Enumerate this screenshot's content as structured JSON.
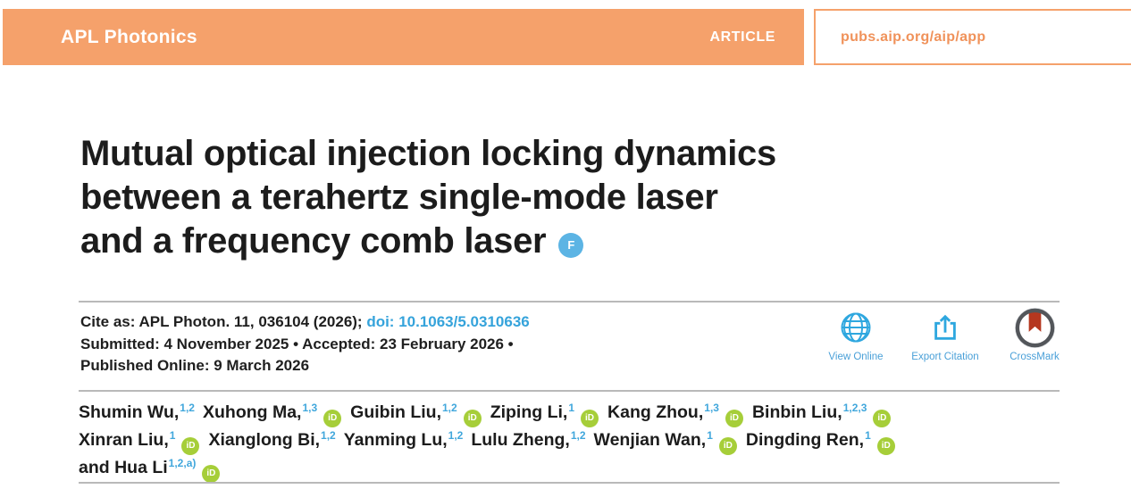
{
  "header": {
    "journal": "APL Photonics",
    "article_label": "ARTICLE",
    "site_url": "pubs.aip.org/aip/app"
  },
  "title": {
    "lines": [
      "Mutual optical injection locking dynamics",
      "between a terahertz single-mode laser",
      "and a frequency comb laser"
    ],
    "badge_glyph": "F"
  },
  "citation": {
    "cite_prefix": "Cite as: APL Photon. ",
    "volume": "11",
    "cite_rest": ", 036104 (2026); ",
    "doi": "doi: 10.1063/5.0310636",
    "submitted_line": "Submitted: 4 November 2025 • Accepted: 23 February 2026 •",
    "published_line": "Published Online: 9 March 2026"
  },
  "actions": [
    {
      "label": "View Online",
      "icon": "globe-icon"
    },
    {
      "label": "Export Citation",
      "icon": "export-icon"
    },
    {
      "label": "CrossMark",
      "icon": "crossmark-icon"
    }
  ],
  "authors": {
    "lines": [
      [
        {
          "name": "Shumin Wu,",
          "sup": "1,2",
          "orcid": false
        },
        {
          "name": "Xuhong Ma,",
          "sup": "1,3",
          "orcid": true
        },
        {
          "name": "Guibin Liu,",
          "sup": "1,2",
          "orcid": true
        },
        {
          "name": "Ziping Li,",
          "sup": "1",
          "orcid": true
        },
        {
          "name": "Kang Zhou,",
          "sup": "1,3",
          "orcid": true
        },
        {
          "name": "Binbin Liu,",
          "sup": "1,2,3",
          "orcid": true
        }
      ],
      [
        {
          "name": "Xinran Liu,",
          "sup": "1",
          "orcid": true
        },
        {
          "name": "Xianglong Bi,",
          "sup": "1,2",
          "orcid": false
        },
        {
          "name": "Yanming Lu,",
          "sup": "1,2",
          "orcid": false
        },
        {
          "name": "Lulu Zheng,",
          "sup": "1,2",
          "orcid": false
        },
        {
          "name": "Wenjian Wan,",
          "sup": "1",
          "orcid": true
        },
        {
          "name": "Dingding Ren,",
          "sup": "1",
          "orcid": true
        }
      ],
      [
        {
          "name": "and Hua Li",
          "sup": "1,2,a)",
          "orcid": true
        }
      ]
    ]
  },
  "icons": {
    "orcid_glyph": "iD"
  },
  "colors": {
    "banner_orange": "#F5A16B",
    "link_blue": "#35A3DB",
    "badge_blue": "#5CB4E4",
    "orcid_green": "#A6CE39",
    "crossmark_red": "#B5371F",
    "rule_gray": "#B9B9B9"
  }
}
